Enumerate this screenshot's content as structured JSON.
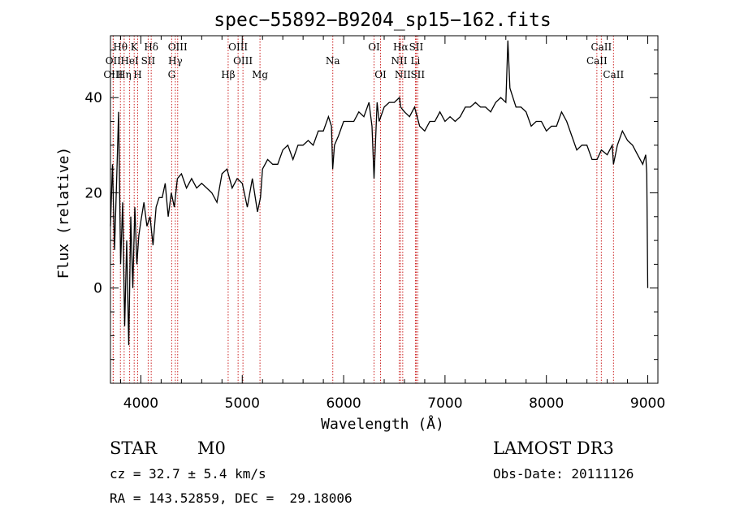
{
  "chart_data": {
    "type": "line",
    "title": "spec−55892−B9204_sp15−162.fits",
    "xlabel": "Wavelength (Å)",
    "ylabel": "Flux (relative)",
    "xlim": [
      3700,
      9100
    ],
    "ylim": [
      -20,
      53
    ],
    "x_ticks": [
      4000,
      5000,
      6000,
      7000,
      8000,
      9000
    ],
    "y_ticks": [
      0,
      20,
      40
    ],
    "grid": false,
    "series": [
      {
        "name": "flux",
        "x": [
          3700,
          3720,
          3740,
          3760,
          3780,
          3800,
          3820,
          3840,
          3860,
          3880,
          3900,
          3920,
          3940,
          3960,
          3980,
          4000,
          4030,
          4060,
          4090,
          4120,
          4150,
          4180,
          4210,
          4240,
          4270,
          4300,
          4330,
          4360,
          4400,
          4450,
          4500,
          4550,
          4600,
          4650,
          4700,
          4750,
          4800,
          4850,
          4900,
          4950,
          5000,
          5050,
          5100,
          5150,
          5180,
          5200,
          5250,
          5300,
          5350,
          5400,
          5450,
          5500,
          5550,
          5600,
          5650,
          5700,
          5750,
          5800,
          5850,
          5880,
          5892,
          5910,
          5950,
          6000,
          6050,
          6100,
          6150,
          6200,
          6250,
          6280,
          6300,
          6330,
          6350,
          6400,
          6450,
          6500,
          6550,
          6563,
          6600,
          6650,
          6700,
          6750,
          6800,
          6850,
          6900,
          6950,
          7000,
          7050,
          7100,
          7150,
          7200,
          7250,
          7300,
          7350,
          7400,
          7450,
          7500,
          7550,
          7600,
          7620,
          7640,
          7700,
          7750,
          7800,
          7850,
          7900,
          7950,
          8000,
          8050,
          8100,
          8150,
          8200,
          8250,
          8300,
          8350,
          8400,
          8450,
          8500,
          8542,
          8600,
          8650,
          8662,
          8700,
          8750,
          8800,
          8850,
          8900,
          8950,
          8980,
          8990,
          9000
        ],
        "y": [
          13,
          26,
          8,
          22,
          37,
          5,
          18,
          -8,
          10,
          -12,
          15,
          0,
          17,
          5,
          11,
          14,
          18,
          13,
          15,
          9,
          17,
          19,
          19,
          22,
          15,
          20,
          17,
          23,
          24,
          21,
          23,
          21,
          22,
          21,
          20,
          18,
          24,
          25,
          21,
          23,
          22,
          17,
          23,
          16,
          19,
          25,
          27,
          26,
          26,
          29,
          30,
          27,
          30,
          30,
          31,
          30,
          33,
          33,
          36,
          34,
          25,
          30,
          32,
          35,
          35,
          35,
          37,
          36,
          39,
          34,
          23,
          39,
          35,
          38,
          39,
          39,
          40,
          38,
          37,
          36,
          38,
          34,
          33,
          35,
          35,
          37,
          35,
          36,
          35,
          36,
          38,
          38,
          39,
          38,
          38,
          37,
          39,
          40,
          39,
          52,
          42,
          38,
          38,
          37,
          34,
          35,
          35,
          33,
          34,
          34,
          37,
          35,
          32,
          29,
          30,
          30,
          27,
          27,
          29,
          28,
          30,
          26,
          30,
          33,
          31,
          30,
          28,
          26,
          28,
          24,
          0
        ]
      }
    ],
    "spectral_lines": [
      {
        "label": "Hθ",
        "wavelength": 3798,
        "row": 1
      },
      {
        "label": "OII",
        "wavelength": 3727,
        "row": 2
      },
      {
        "label": "OIII",
        "wavelength": 3727,
        "row": 3
      },
      {
        "label": "K",
        "wavelength": 3934,
        "row": 1
      },
      {
        "label": "HeI",
        "wavelength": 3889,
        "row": 2
      },
      {
        "label": "Hη",
        "wavelength": 3835,
        "row": 3
      },
      {
        "label": "Hδ",
        "wavelength": 4102,
        "row": 1
      },
      {
        "label": "SII",
        "wavelength": 4072,
        "row": 2
      },
      {
        "label": "H",
        "wavelength": 3968,
        "row": 3
      },
      {
        "label": "OIII",
        "wavelength": 4363,
        "row": 1
      },
      {
        "label": "Hγ",
        "wavelength": 4340,
        "row": 2
      },
      {
        "label": "G",
        "wavelength": 4304,
        "row": 3
      },
      {
        "label": "OIII",
        "wavelength": 4959,
        "row": 1
      },
      {
        "label": "OIII",
        "wavelength": 5007,
        "row": 2
      },
      {
        "label": "Hβ",
        "wavelength": 4861,
        "row": 3
      },
      {
        "label": "Mg",
        "wavelength": 5175,
        "row": 3
      },
      {
        "label": "Na",
        "wavelength": 5893,
        "row": 2
      },
      {
        "label": "OI",
        "wavelength": 6300,
        "row": 1
      },
      {
        "label": "OI",
        "wavelength": 6364,
        "row": 3
      },
      {
        "label": "Hα",
        "wavelength": 6563,
        "row": 1
      },
      {
        "label": "SII",
        "wavelength": 6716,
        "row": 1
      },
      {
        "label": "NII",
        "wavelength": 6548,
        "row": 2
      },
      {
        "label": "Li",
        "wavelength": 6708,
        "row": 2
      },
      {
        "label": "NII",
        "wavelength": 6583,
        "row": 3
      },
      {
        "label": "SII",
        "wavelength": 6731,
        "row": 3
      },
      {
        "label": "CaII",
        "wavelength": 8542,
        "row": 1
      },
      {
        "label": "CaII",
        "wavelength": 8498,
        "row": 2
      },
      {
        "label": "CaII",
        "wavelength": 8662,
        "row": 3
      }
    ]
  },
  "info": {
    "class_label": "STAR",
    "subclass": "M0",
    "survey": "LAMOST DR3",
    "redshift": "cz = 32.7 ± 5.4 km/s",
    "obs_date": "Obs-Date: 20111126",
    "coords": "RA = 143.52859, DEC =  29.18006"
  }
}
